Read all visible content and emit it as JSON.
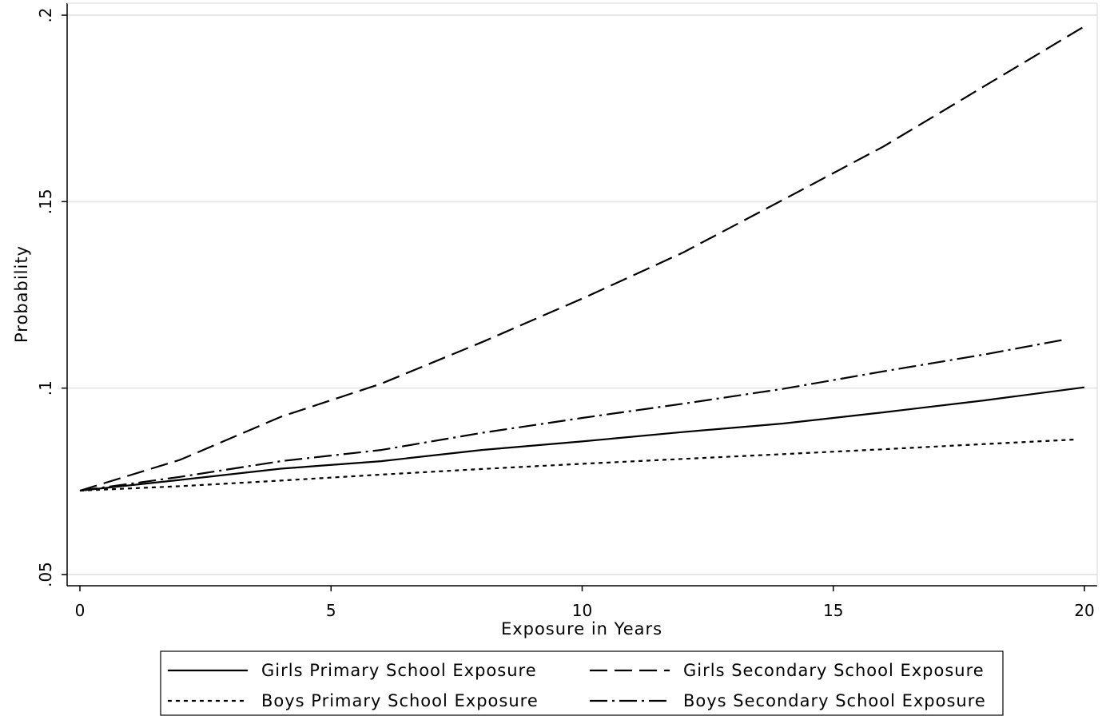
{
  "chart_data": {
    "type": "line",
    "xlabel": "Exposure in Years",
    "ylabel": "Probability",
    "xlim": [
      0,
      20
    ],
    "ylim": [
      0.05,
      0.2
    ],
    "x_ticks": [
      0,
      5,
      10,
      15,
      20
    ],
    "x_tick_labels": [
      "0",
      "5",
      "10",
      "15",
      "20"
    ],
    "y_ticks": [
      0.05,
      0.1,
      0.15,
      0.2
    ],
    "y_tick_labels": [
      ".05",
      ".1",
      ".15",
      ".2"
    ],
    "grid": "horizontal",
    "legend_position": "bottom",
    "series": [
      {
        "name": "Girls Primary School Exposure",
        "style": "solid",
        "x": [
          0,
          2,
          4,
          6,
          8,
          10,
          12,
          14,
          16,
          18,
          20
        ],
        "y": [
          0.0725,
          0.0754,
          0.0784,
          0.0804,
          0.0834,
          0.0857,
          0.0882,
          0.0905,
          0.0935,
          0.0967,
          0.1002
        ]
      },
      {
        "name": "Girls Secondary School Exposure",
        "style": "dash",
        "x": [
          0,
          2,
          4,
          6,
          8,
          10,
          12,
          14,
          16,
          18,
          20
        ],
        "y": [
          0.0725,
          0.0808,
          0.0923,
          0.1012,
          0.1123,
          0.124,
          0.1363,
          0.1505,
          0.1648,
          0.1809,
          0.197
        ]
      },
      {
        "name": "Boys Primary School Exposure",
        "style": "dot",
        "x": [
          0,
          2,
          4,
          6,
          8,
          10,
          12,
          14,
          16,
          18,
          19.8
        ],
        "y": [
          0.0725,
          0.0737,
          0.0752,
          0.0768,
          0.0783,
          0.0797,
          0.081,
          0.0823,
          0.0836,
          0.085,
          0.0862
        ]
      },
      {
        "name": "Boys Secondary School Exposure",
        "style": "dashdot",
        "x": [
          0,
          2,
          4,
          6,
          8,
          10,
          12,
          14,
          16,
          18,
          19.6
        ],
        "y": [
          0.0725,
          0.0762,
          0.0804,
          0.0834,
          0.088,
          0.092,
          0.0958,
          0.0998,
          0.1045,
          0.109,
          0.113
        ]
      }
    ]
  }
}
